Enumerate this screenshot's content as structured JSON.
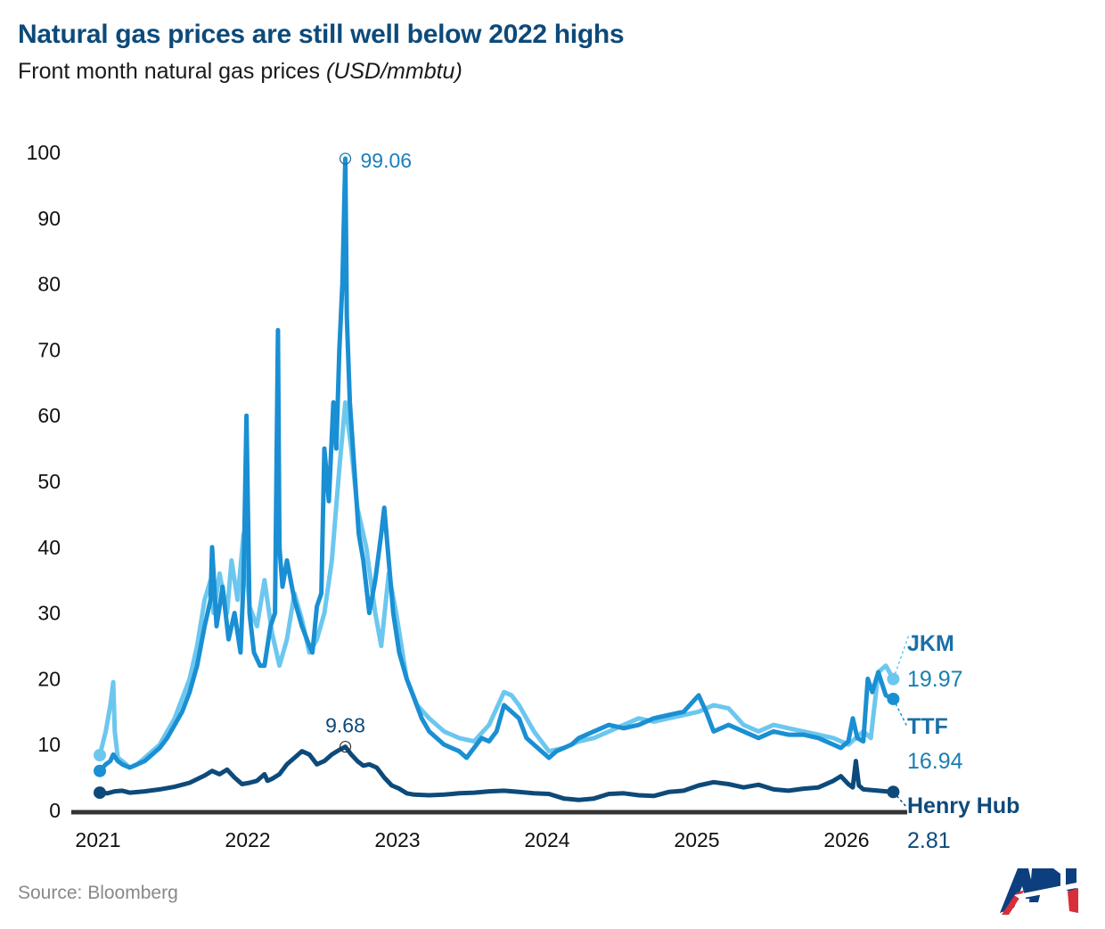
{
  "header": {
    "title": "Natural gas prices are still well below 2022 highs",
    "subtitle_main": "Front month natural gas prices ",
    "subtitle_unit": "(USD/mmbtu)"
  },
  "footer": {
    "source": "Source: Bloomberg",
    "logo_text": "API"
  },
  "colors": {
    "jkm": "#6cc7ef",
    "ttf": "#1a8fd3",
    "henry_hub": "#0d4a7a",
    "axis": "#333333"
  },
  "chart_data": {
    "type": "line",
    "title": "Natural gas prices are still well below 2022 highs",
    "subtitle": "Front month natural gas prices (USD/mmbtu)",
    "xlabel": "",
    "ylabel": "USD/mmbtu",
    "ylim": [
      0,
      100
    ],
    "xlim": [
      2021.0,
      2026.35
    ],
    "yticks": [
      "0",
      "10",
      "20",
      "30",
      "40",
      "50",
      "60",
      "70",
      "80",
      "90",
      "100"
    ],
    "ytick_values": [
      0,
      10,
      20,
      30,
      40,
      50,
      60,
      70,
      80,
      90,
      100
    ],
    "xticks": [
      "2021",
      "2022",
      "2023",
      "2024",
      "2025",
      "2026"
    ],
    "xtick_values": [
      2021,
      2022,
      2023,
      2024,
      2025,
      2026
    ],
    "grid": false,
    "legend": "direct-labels-right",
    "series": [
      {
        "name": "JKM",
        "end_label": "19.97",
        "x": [
          2021.0,
          2021.04,
          2021.07,
          2021.09,
          2021.1,
          2021.12,
          2021.15,
          2021.2,
          2021.25,
          2021.3,
          2021.35,
          2021.4,
          2021.45,
          2021.5,
          2021.55,
          2021.6,
          2021.65,
          2021.7,
          2021.74,
          2021.76,
          2021.8,
          2021.85,
          2021.88,
          2021.92,
          2021.96,
          2022.0,
          2022.05,
          2022.1,
          2022.15,
          2022.2,
          2022.25,
          2022.3,
          2022.35,
          2022.4,
          2022.45,
          2022.5,
          2022.55,
          2022.6,
          2022.64,
          2022.68,
          2022.72,
          2022.78,
          2022.84,
          2022.88,
          2022.93,
          2022.98,
          2023.05,
          2023.12,
          2023.2,
          2023.3,
          2023.4,
          2023.5,
          2023.6,
          2023.7,
          2023.75,
          2023.8,
          2023.9,
          2024.0,
          2024.1,
          2024.2,
          2024.3,
          2024.4,
          2024.5,
          2024.6,
          2024.7,
          2024.8,
          2024.9,
          2025.0,
          2025.1,
          2025.2,
          2025.3,
          2025.4,
          2025.5,
          2025.6,
          2025.7,
          2025.8,
          2025.9,
          2026.0,
          2026.05,
          2026.1,
          2026.15,
          2026.2,
          2026.25,
          2026.3
        ],
        "values": [
          8.4,
          12,
          16,
          19.5,
          12,
          8,
          7.5,
          6.5,
          7,
          8,
          9,
          10,
          12,
          14,
          17,
          20,
          25,
          32,
          35,
          30,
          36,
          30,
          38,
          32,
          42,
          31,
          28,
          35,
          27,
          22,
          26,
          33,
          29,
          24,
          26,
          30,
          38,
          52,
          62,
          55,
          46,
          40,
          30,
          25,
          36,
          30,
          20,
          16,
          14,
          12,
          11,
          10.5,
          13,
          18,
          17.5,
          16,
          12,
          9,
          9.5,
          10.5,
          11,
          12,
          13,
          14,
          13.5,
          14,
          14.5,
          15,
          16,
          15.5,
          13,
          12,
          13,
          12.5,
          12,
          11.5,
          11,
          10,
          11,
          12,
          11,
          21,
          22,
          19.97
        ]
      },
      {
        "name": "TTF",
        "end_label": "16.94",
        "x": [
          2021.0,
          2021.04,
          2021.07,
          2021.09,
          2021.12,
          2021.15,
          2021.2,
          2021.25,
          2021.3,
          2021.35,
          2021.4,
          2021.45,
          2021.5,
          2021.55,
          2021.6,
          2021.65,
          2021.7,
          2021.74,
          2021.75,
          2021.78,
          2021.82,
          2021.86,
          2021.9,
          2021.94,
          2021.96,
          2021.98,
          2022.0,
          2022.03,
          2022.07,
          2022.1,
          2022.14,
          2022.17,
          2022.19,
          2022.2,
          2022.22,
          2022.25,
          2022.3,
          2022.35,
          2022.4,
          2022.42,
          2022.45,
          2022.48,
          2022.5,
          2022.53,
          2022.56,
          2022.58,
          2022.6,
          2022.62,
          2022.64,
          2022.65,
          2022.67,
          2022.7,
          2022.73,
          2022.76,
          2022.8,
          2022.84,
          2022.88,
          2022.9,
          2022.93,
          2022.96,
          2023.0,
          2023.05,
          2023.1,
          2023.15,
          2023.2,
          2023.3,
          2023.35,
          2023.4,
          2023.45,
          2023.5,
          2023.55,
          2023.6,
          2023.65,
          2023.7,
          2023.75,
          2023.8,
          2023.85,
          2023.9,
          2024.0,
          2024.05,
          2024.1,
          2024.15,
          2024.2,
          2024.3,
          2024.4,
          2024.5,
          2024.6,
          2024.7,
          2024.8,
          2024.9,
          2025.0,
          2025.05,
          2025.1,
          2025.2,
          2025.3,
          2025.4,
          2025.5,
          2025.6,
          2025.7,
          2025.8,
          2025.9,
          2025.95,
          2026.0,
          2026.03,
          2026.06,
          2026.1,
          2026.13,
          2026.16,
          2026.2,
          2026.25,
          2026.3
        ],
        "values": [
          6,
          7,
          7.5,
          8.5,
          7.5,
          7,
          6.5,
          7,
          7.5,
          8.5,
          9.5,
          11,
          13,
          15,
          18,
          22,
          28,
          32,
          40,
          28,
          34,
          26,
          30,
          24,
          35,
          60,
          30,
          24,
          22,
          22,
          28,
          30,
          73,
          40,
          34,
          38,
          32,
          28,
          25,
          24,
          31,
          33,
          55,
          47,
          62,
          55,
          70,
          80,
          99.06,
          75,
          62,
          52,
          42,
          38,
          30,
          35,
          42,
          46,
          38,
          30,
          24,
          20,
          17,
          14,
          12,
          10,
          9.5,
          9,
          8,
          9.5,
          11,
          10.5,
          12,
          16,
          15,
          14,
          11,
          10,
          8,
          9,
          9.5,
          10,
          11,
          12,
          13,
          12.5,
          13,
          14,
          14.5,
          15,
          17.5,
          15,
          12,
          13,
          12,
          11,
          12,
          11.5,
          11.5,
          11,
          10,
          9.5,
          10.5,
          14,
          11,
          10.5,
          20,
          18,
          21,
          17.5,
          16.94
        ]
      },
      {
        "name": "Henry Hub",
        "end_label": "2.81",
        "x": [
          2021.0,
          2021.05,
          2021.1,
          2021.15,
          2021.2,
          2021.3,
          2021.4,
          2021.5,
          2021.6,
          2021.7,
          2021.75,
          2021.8,
          2021.85,
          2021.9,
          2021.95,
          2022.0,
          2022.05,
          2022.1,
          2022.12,
          2022.15,
          2022.2,
          2022.25,
          2022.3,
          2022.35,
          2022.4,
          2022.45,
          2022.5,
          2022.55,
          2022.6,
          2022.64,
          2022.68,
          2022.72,
          2022.76,
          2022.8,
          2022.85,
          2022.9,
          2022.95,
          2023.0,
          2023.05,
          2023.1,
          2023.2,
          2023.3,
          2023.4,
          2023.5,
          2023.6,
          2023.7,
          2023.8,
          2023.9,
          2024.0,
          2024.1,
          2024.2,
          2024.3,
          2024.4,
          2024.5,
          2024.6,
          2024.7,
          2024.8,
          2024.9,
          2025.0,
          2025.1,
          2025.2,
          2025.3,
          2025.4,
          2025.5,
          2025.6,
          2025.7,
          2025.8,
          2025.9,
          2025.95,
          2026.0,
          2026.03,
          2026.05,
          2026.07,
          2026.1,
          2026.15,
          2026.2,
          2026.25,
          2026.3
        ],
        "values": [
          2.7,
          2.6,
          2.9,
          3.0,
          2.7,
          2.9,
          3.2,
          3.6,
          4.2,
          5.3,
          6.0,
          5.5,
          6.2,
          5.0,
          4.0,
          4.2,
          4.5,
          5.5,
          4.5,
          4.8,
          5.5,
          7.0,
          8.0,
          9.0,
          8.5,
          7.0,
          7.5,
          8.5,
          9.2,
          9.68,
          8.5,
          7.5,
          6.8,
          7.0,
          6.5,
          5.0,
          3.8,
          3.3,
          2.6,
          2.4,
          2.3,
          2.4,
          2.6,
          2.7,
          2.9,
          3.0,
          2.8,
          2.6,
          2.5,
          1.8,
          1.6,
          1.8,
          2.5,
          2.6,
          2.3,
          2.2,
          2.8,
          3.0,
          3.8,
          4.3,
          4.0,
          3.5,
          3.9,
          3.2,
          3.0,
          3.3,
          3.5,
          4.5,
          5.2,
          4.0,
          3.5,
          7.5,
          3.8,
          3.2,
          3.1,
          3.0,
          2.9,
          2.81
        ]
      }
    ],
    "annotations": [
      {
        "label": "99.06",
        "series": "TTF",
        "x": 2022.64,
        "y": 99.06
      },
      {
        "label": "9.68",
        "series": "Henry Hub",
        "x": 2022.64,
        "y": 9.68
      }
    ]
  }
}
